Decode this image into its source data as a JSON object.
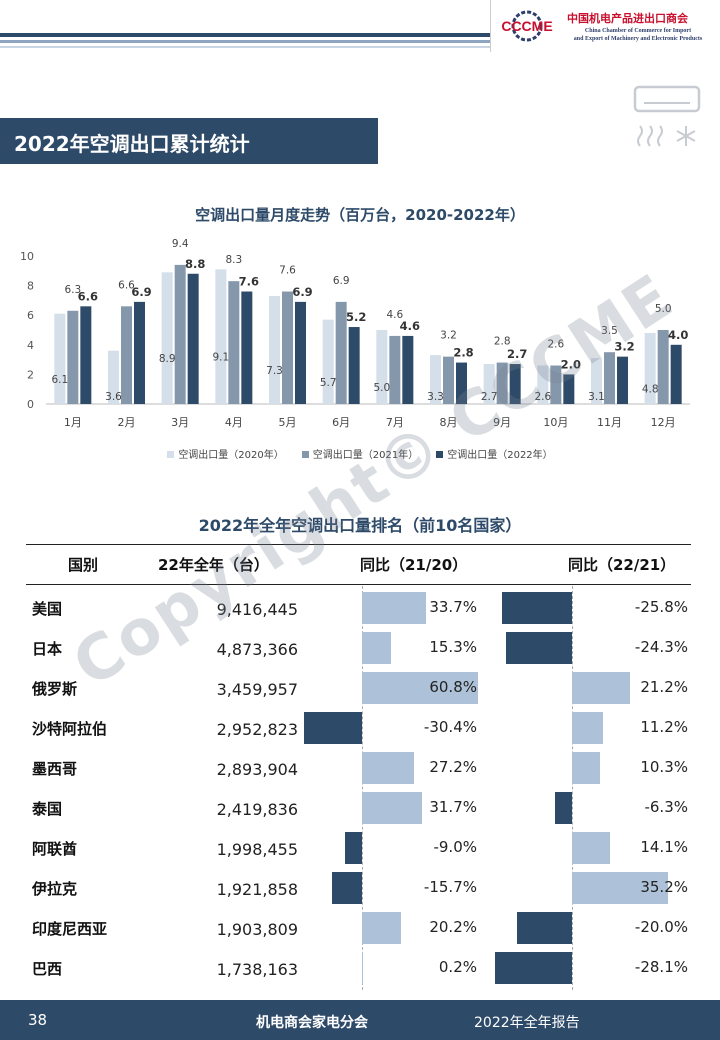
{
  "header": {
    "logo_text": "CCCME",
    "org_cn": "中国机电产品进出口商会",
    "org_en_1": "China Chamber of Commerce for Import",
    "org_en_2": "and Export of Machinery and Electronic Products"
  },
  "section_title": "2022年空调出口累计统计",
  "chart_data": {
    "type": "bar",
    "title": "空调出口量月度走势（百万台，2020-2022年）",
    "categories": [
      "1月",
      "2月",
      "3月",
      "4月",
      "5月",
      "6月",
      "7月",
      "8月",
      "9月",
      "10月",
      "11月",
      "12月"
    ],
    "series": [
      {
        "name": "空调出口量（2020年）",
        "color": "#d4dfea",
        "values": [
          6.1,
          3.6,
          8.9,
          9.1,
          7.3,
          5.7,
          5.0,
          3.3,
          2.7,
          2.6,
          3.1,
          4.8
        ]
      },
      {
        "name": "空调出口量（2021年）",
        "color": "#8597ab",
        "values": [
          6.3,
          6.6,
          9.4,
          8.3,
          7.6,
          6.9,
          4.6,
          3.2,
          2.8,
          2.6,
          3.5,
          5.0
        ]
      },
      {
        "name": "空调出口量（2022年）",
        "color": "#2e4a69",
        "values": [
          6.6,
          6.9,
          8.8,
          7.6,
          6.9,
          5.2,
          4.6,
          2.8,
          2.7,
          2.0,
          3.2,
          4.0
        ]
      }
    ],
    "ylim": [
      0,
      10
    ],
    "yticks": [
      0,
      2,
      4,
      6,
      8,
      10
    ],
    "grid": false,
    "legend": "bottom"
  },
  "table": {
    "title": "2022年全年空调出口量排名（前10名国家）",
    "headers": [
      "国别",
      "22年全年（台）",
      "同比（21/20）",
      "同比（22/21）"
    ],
    "rows": [
      {
        "country": "美国",
        "volume": "9,416,445",
        "yoy2120": "33.7%",
        "v2120": 33.7,
        "yoy2221": "-25.8%",
        "v2221": -25.8
      },
      {
        "country": "日本",
        "volume": "4,873,366",
        "yoy2120": "15.3%",
        "v2120": 15.3,
        "yoy2221": "-24.3%",
        "v2221": -24.3
      },
      {
        "country": "俄罗斯",
        "volume": "3,459,957",
        "yoy2120": "60.8%",
        "v2120": 60.8,
        "yoy2221": "21.2%",
        "v2221": 21.2
      },
      {
        "country": "沙特阿拉伯",
        "volume": "2,952,823",
        "yoy2120": "-30.4%",
        "v2120": -30.4,
        "yoy2221": "11.2%",
        "v2221": 11.2
      },
      {
        "country": "墨西哥",
        "volume": "2,893,904",
        "yoy2120": "27.2%",
        "v2120": 27.2,
        "yoy2221": "10.3%",
        "v2221": 10.3
      },
      {
        "country": "泰国",
        "volume": "2,419,836",
        "yoy2120": "31.7%",
        "v2120": 31.7,
        "yoy2221": "-6.3%",
        "v2221": -6.3
      },
      {
        "country": "阿联酋",
        "volume": "1,998,455",
        "yoy2120": "-9.0%",
        "v2120": -9.0,
        "yoy2221": "14.1%",
        "v2221": 14.1
      },
      {
        "country": "伊拉克",
        "volume": "1,921,858",
        "yoy2120": "-15.7%",
        "v2120": -15.7,
        "yoy2221": "35.2%",
        "v2221": 35.2
      },
      {
        "country": "印度尼西亚",
        "volume": "1,903,809",
        "yoy2120": "20.2%",
        "v2120": 20.2,
        "yoy2221": "-20.0%",
        "v2221": -20.0
      },
      {
        "country": "巴西",
        "volume": "1,738,163",
        "yoy2120": "0.2%",
        "v2120": 0.2,
        "yoy2221": "-28.1%",
        "v2221": -28.1
      }
    ],
    "pos_color": "#adc2d9",
    "neg_color": "#2e4a69"
  },
  "footer": {
    "page": "38",
    "center": "机电商会家电分会",
    "right": "2022年全年报告"
  },
  "watermark": "Copyright© CCCME"
}
